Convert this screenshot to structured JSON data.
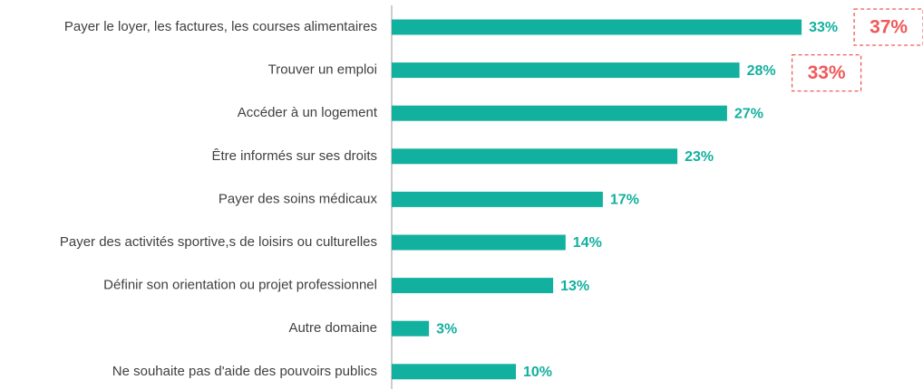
{
  "chart_data": {
    "type": "bar",
    "orientation": "horizontal",
    "categories": [
      "Payer le loyer, les factures, les courses alimentaires",
      "Trouver un emploi",
      "Accéder à un logement",
      "Être informés sur ses droits",
      "Payer des soins médicaux",
      "Payer des activités sportive,s de loisirs ou culturelles",
      "Définir son orientation ou projet professionnel",
      "Autre domaine",
      "Ne souhaite pas d'aide des pouvoirs publics"
    ],
    "values": [
      33,
      28,
      27,
      23,
      17,
      14,
      13,
      3,
      10
    ],
    "value_labels": [
      "33%",
      "28%",
      "27%",
      "23%",
      "17%",
      "14%",
      "13%",
      "3%",
      "10%"
    ],
    "color": "#12b09e",
    "annotations": [
      "37%",
      "33%"
    ]
  }
}
